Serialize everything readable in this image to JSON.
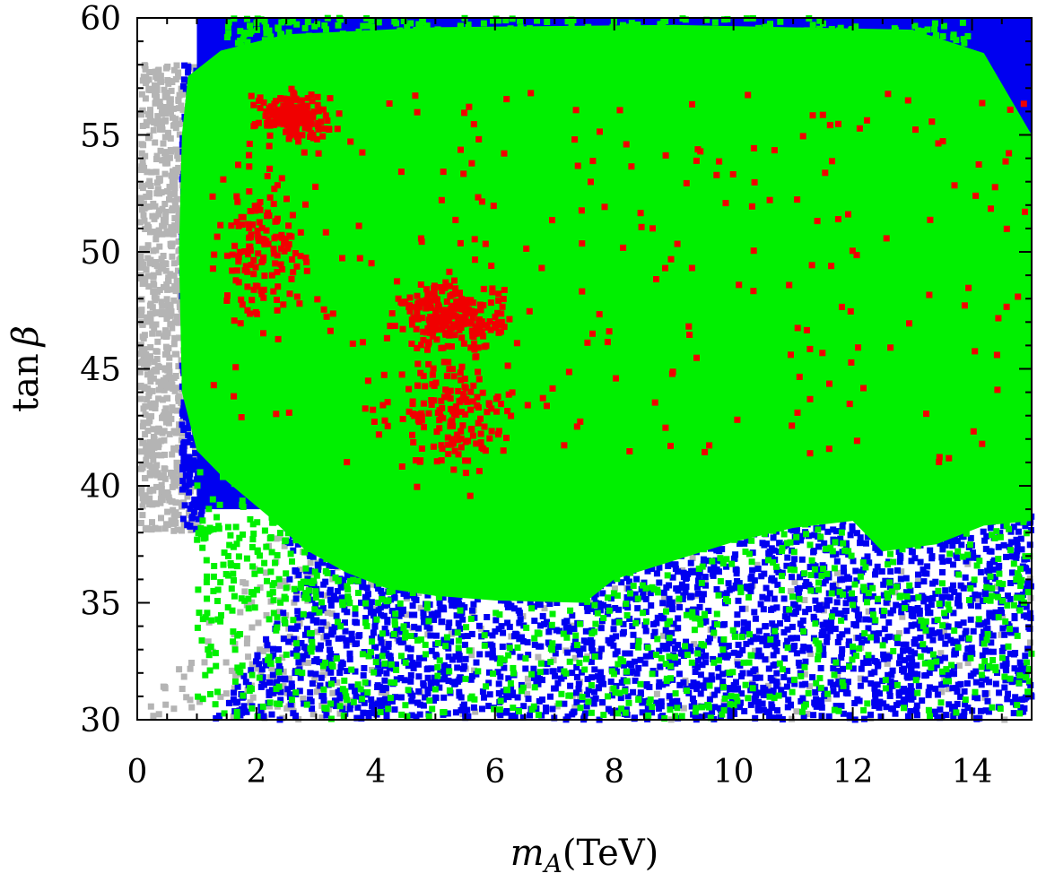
{
  "chart_data": {
    "type": "scatter",
    "title": "",
    "xlabel": "m_A(TeV)",
    "xlabel_main": "m",
    "xlabel_sub": "A",
    "xlabel_unit": "(TeV)",
    "ylabel": "tan β",
    "ylabel_fn": "tan",
    "ylabel_sym": "β",
    "xlim": [
      0,
      15
    ],
    "ylim": [
      30,
      60
    ],
    "x_ticks": [
      0,
      2,
      4,
      6,
      8,
      10,
      12,
      14
    ],
    "x_tick_labels": [
      "0",
      "2",
      "4",
      "6",
      "8",
      "10",
      "12",
      "14"
    ],
    "y_ticks": [
      30,
      35,
      40,
      45,
      50,
      55,
      60
    ],
    "y_tick_labels": [
      "30",
      "35",
      "40",
      "45",
      "50",
      "55",
      "60"
    ],
    "grid": false,
    "legend": "none",
    "series_colors": {
      "gray": "#b4b4b4",
      "blue": "#0000f0",
      "green": "#00f000",
      "red": "#f00000"
    },
    "regions": {
      "gray": {
        "x_range": [
          0,
          1.5
        ],
        "y_range": [
          30,
          58.5
        ]
      },
      "blue": {
        "x_range": [
          0.7,
          15
        ],
        "y_range": [
          30,
          60
        ]
      },
      "green": {
        "x_range": [
          0.7,
          15
        ],
        "y_range": [
          35,
          60
        ]
      },
      "red": {
        "clusters": [
          {
            "x": 2.6,
            "y": 55.8,
            "spread": [
              0.5,
              0.8
            ]
          },
          {
            "x": 5.3,
            "y": 47.2,
            "spread": [
              0.7,
              1.2
            ]
          },
          {
            "x": 2.1,
            "y": 50.0,
            "spread": [
              0.6,
              2.5
            ]
          },
          {
            "x": 5.3,
            "y": 43.0,
            "spread": [
              0.8,
              2.0
            ]
          }
        ],
        "sparse_x_range": [
          1.2,
          15
        ],
        "sparse_y_range": [
          37,
          57
        ]
      }
    }
  }
}
